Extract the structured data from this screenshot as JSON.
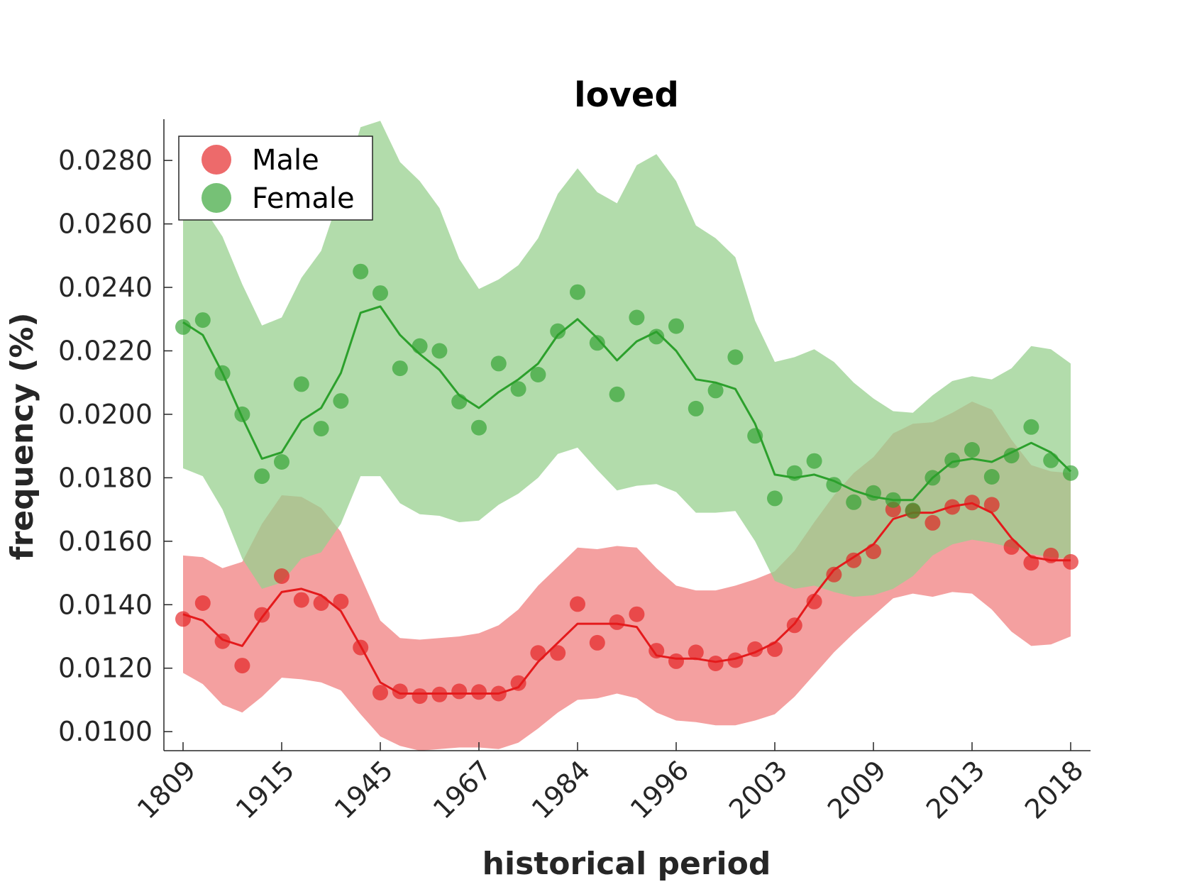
{
  "chart_data": {
    "type": "line",
    "title": "loved",
    "xlabel": "historical period",
    "ylabel": "frequency (%)",
    "ylim": [
      0.0094,
      0.0293
    ],
    "yticks": [
      0.01,
      0.012,
      0.014,
      0.016,
      0.018,
      0.02,
      0.022,
      0.024,
      0.026,
      0.028
    ],
    "ytick_labels": [
      "0.0100",
      "0.0120",
      "0.0140",
      "0.0160",
      "0.0180",
      "0.0200",
      "0.0220",
      "0.0240",
      "0.0260",
      "0.0280"
    ],
    "x_tick_labels": [
      "1809",
      "1915",
      "1945",
      "1967",
      "1984",
      "1996",
      "2003",
      "2009",
      "2013",
      "2018"
    ],
    "x_tick_positions": [
      0,
      5,
      10,
      15,
      20,
      25,
      30,
      35,
      40,
      45
    ],
    "x_count": 46,
    "grid": false,
    "legend_position": "top-left",
    "series": [
      {
        "name": "Male",
        "color": "#e41a1c",
        "fill_color": "#f08080",
        "points": [
          0.01355,
          0.01405,
          0.01285,
          0.01208,
          0.01368,
          0.0149,
          0.01415,
          0.01405,
          0.0141,
          0.01265,
          0.01123,
          0.01127,
          0.01112,
          0.01117,
          0.01127,
          0.01125,
          0.0112,
          0.01153,
          0.01248,
          0.01248,
          0.01402,
          0.0128,
          0.01345,
          0.0137,
          0.01255,
          0.01222,
          0.0125,
          0.01215,
          0.01225,
          0.0126,
          0.0126,
          0.01335,
          0.0141,
          0.01495,
          0.0154,
          0.01568,
          0.017,
          0.01695,
          0.01658,
          0.01708,
          0.01722,
          0.01715,
          0.01582,
          0.01532,
          0.01555,
          0.01535
        ],
        "trend": [
          0.0137,
          0.0135,
          0.0129,
          0.0127,
          0.0136,
          0.0144,
          0.0145,
          0.0143,
          0.0138,
          0.0127,
          0.01155,
          0.0112,
          0.0112,
          0.0112,
          0.0112,
          0.0112,
          0.0112,
          0.0114,
          0.0122,
          0.0128,
          0.0134,
          0.0134,
          0.0134,
          0.0133,
          0.0124,
          0.0123,
          0.0123,
          0.0122,
          0.0123,
          0.0125,
          0.0128,
          0.0134,
          0.0143,
          0.0151,
          0.0155,
          0.0159,
          0.0167,
          0.0169,
          0.0169,
          0.0171,
          0.0172,
          0.0169,
          0.0161,
          0.0155,
          0.0154,
          0.0154
        ],
        "upper": [
          0.01555,
          0.0155,
          0.01515,
          0.01535,
          0.01655,
          0.01745,
          0.0174,
          0.01705,
          0.0163,
          0.0149,
          0.0135,
          0.01295,
          0.0129,
          0.01295,
          0.013,
          0.0131,
          0.01335,
          0.01385,
          0.0146,
          0.0152,
          0.0158,
          0.01575,
          0.01585,
          0.0158,
          0.01515,
          0.0146,
          0.01445,
          0.01445,
          0.0146,
          0.0148,
          0.01505,
          0.0157,
          0.0166,
          0.01745,
          0.01815,
          0.01865,
          0.0194,
          0.0197,
          0.01975,
          0.02005,
          0.0204,
          0.02015,
          0.0192,
          0.0184,
          0.0182,
          0.01815
        ],
        "lower": [
          0.01185,
          0.0115,
          0.01085,
          0.0106,
          0.0111,
          0.0117,
          0.01165,
          0.01155,
          0.0113,
          0.01055,
          0.00985,
          0.00955,
          0.0094,
          0.00945,
          0.0095,
          0.0095,
          0.00945,
          0.00965,
          0.0101,
          0.0106,
          0.011,
          0.01105,
          0.0112,
          0.01105,
          0.0106,
          0.01035,
          0.0103,
          0.0102,
          0.0102,
          0.01035,
          0.01055,
          0.0111,
          0.0118,
          0.0125,
          0.0131,
          0.01365,
          0.0142,
          0.01435,
          0.01425,
          0.0144,
          0.01435,
          0.01385,
          0.01315,
          0.0127,
          0.01275,
          0.013
        ]
      },
      {
        "name": "Female",
        "color": "#2ca02c",
        "fill_color": "#98d08f",
        "points": [
          0.02275,
          0.02297,
          0.0213,
          0.02,
          0.01805,
          0.0185,
          0.02095,
          0.01955,
          0.02042,
          0.0245,
          0.02382,
          0.02145,
          0.02215,
          0.022,
          0.0204,
          0.01958,
          0.0216,
          0.0208,
          0.02125,
          0.02262,
          0.02385,
          0.02225,
          0.02063,
          0.02305,
          0.02245,
          0.02278,
          0.02018,
          0.02075,
          0.0218,
          0.01932,
          0.01735,
          0.01815,
          0.01853,
          0.01778,
          0.01723,
          0.01752,
          0.0173,
          0.01697,
          0.018,
          0.01855,
          0.01888,
          0.01803,
          0.0187,
          0.0196,
          0.01855,
          0.01815
        ],
        "trend": [
          0.0229,
          0.0225,
          0.0213,
          0.0199,
          0.0186,
          0.0188,
          0.0198,
          0.0202,
          0.0213,
          0.0232,
          0.0234,
          0.0225,
          0.0219,
          0.0214,
          0.0206,
          0.0202,
          0.0207,
          0.0211,
          0.0216,
          0.0225,
          0.023,
          0.0224,
          0.0217,
          0.0223,
          0.0226,
          0.022,
          0.0211,
          0.021,
          0.0208,
          0.0197,
          0.0181,
          0.018,
          0.0181,
          0.0179,
          0.0176,
          0.0174,
          0.0173,
          0.0173,
          0.018,
          0.0185,
          0.0186,
          0.0185,
          0.0188,
          0.0191,
          0.0188,
          0.0182
        ],
        "upper": [
          0.0266,
          0.02655,
          0.0256,
          0.0241,
          0.0228,
          0.02305,
          0.0243,
          0.02515,
          0.027,
          0.02905,
          0.02925,
          0.02795,
          0.02735,
          0.0265,
          0.0249,
          0.02395,
          0.02425,
          0.0247,
          0.02555,
          0.02695,
          0.02775,
          0.027,
          0.02665,
          0.02785,
          0.0282,
          0.02735,
          0.02595,
          0.02555,
          0.02495,
          0.02295,
          0.02165,
          0.0218,
          0.02205,
          0.02165,
          0.021,
          0.0205,
          0.0201,
          0.02005,
          0.0206,
          0.02105,
          0.0212,
          0.0211,
          0.02145,
          0.02215,
          0.02205,
          0.0216
        ],
        "lower": [
          0.0183,
          0.01805,
          0.017,
          0.01545,
          0.0145,
          0.0147,
          0.01545,
          0.01565,
          0.01655,
          0.01805,
          0.01805,
          0.0172,
          0.01685,
          0.0168,
          0.0166,
          0.01665,
          0.01715,
          0.0175,
          0.018,
          0.01875,
          0.01895,
          0.01825,
          0.0176,
          0.01775,
          0.0178,
          0.01755,
          0.0169,
          0.0169,
          0.01695,
          0.016,
          0.01475,
          0.0145,
          0.0146,
          0.0144,
          0.01425,
          0.0143,
          0.0145,
          0.0149,
          0.01555,
          0.0159,
          0.01605,
          0.01595,
          0.0158,
          0.0156,
          0.0155,
          0.01545
        ]
      }
    ]
  }
}
